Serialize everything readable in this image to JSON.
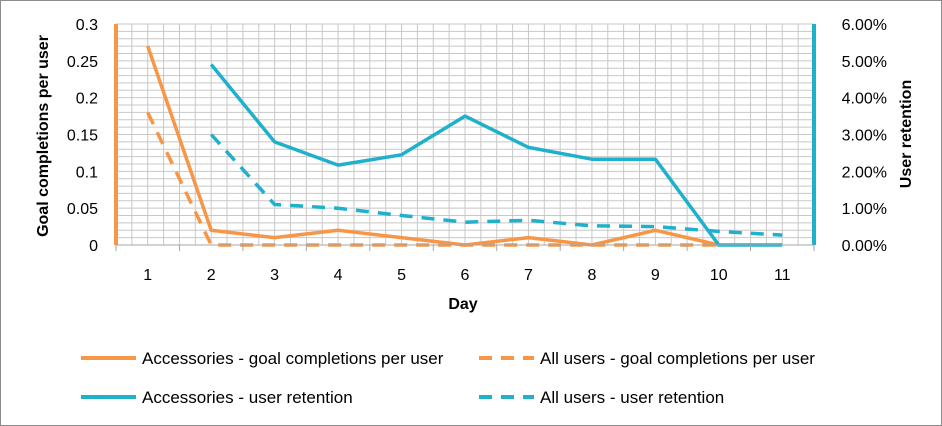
{
  "chart_data": {
    "type": "line",
    "title": "",
    "xlabel": "Day",
    "ylabel_left": "Goal completions per user",
    "ylabel_right": "User retention",
    "categories": [
      "1",
      "2",
      "3",
      "4",
      "5",
      "6",
      "7",
      "8",
      "9",
      "10",
      "11"
    ],
    "ylim_left": [
      0,
      0.3
    ],
    "yticks_left": [
      "0",
      "0.05",
      "0.1",
      "0.15",
      "0.2",
      "0.25",
      "0.3"
    ],
    "ylim_right": [
      0,
      0.06
    ],
    "yticks_right": [
      "0.00%",
      "1.00%",
      "2.00%",
      "3.00%",
      "4.00%",
      "5.00%",
      "6.00%"
    ],
    "grid": true,
    "legend_position": "bottom",
    "series": [
      {
        "name": "Accessories - goal completions per user",
        "axis": "left",
        "color": "#f79646",
        "dashed": false,
        "values": [
          0.27,
          0.02,
          0.01,
          0.02,
          0.01,
          0,
          0.01,
          0,
          0.02,
          0,
          null
        ]
      },
      {
        "name": "All users - goal completions per user",
        "axis": "left",
        "color": "#f79646",
        "dashed": true,
        "values": [
          0.18,
          0,
          0,
          0,
          0,
          0,
          0,
          0,
          0,
          0,
          null
        ]
      },
      {
        "name": "Accessories - user retention",
        "axis": "right",
        "color": "#1fb0cc",
        "dashed": false,
        "values": [
          null,
          0.049,
          0.028,
          0.0217,
          0.0245,
          0.035,
          0.0265,
          0.0233,
          0.0233,
          0,
          0
        ]
      },
      {
        "name": "All users - user retention",
        "axis": "right",
        "color": "#1fb0cc",
        "dashed": true,
        "values": [
          null,
          0.03,
          0.011,
          0.01,
          0.008,
          0.0062,
          0.0067,
          0.0052,
          0.005,
          0.0037,
          0.0027
        ]
      }
    ]
  }
}
